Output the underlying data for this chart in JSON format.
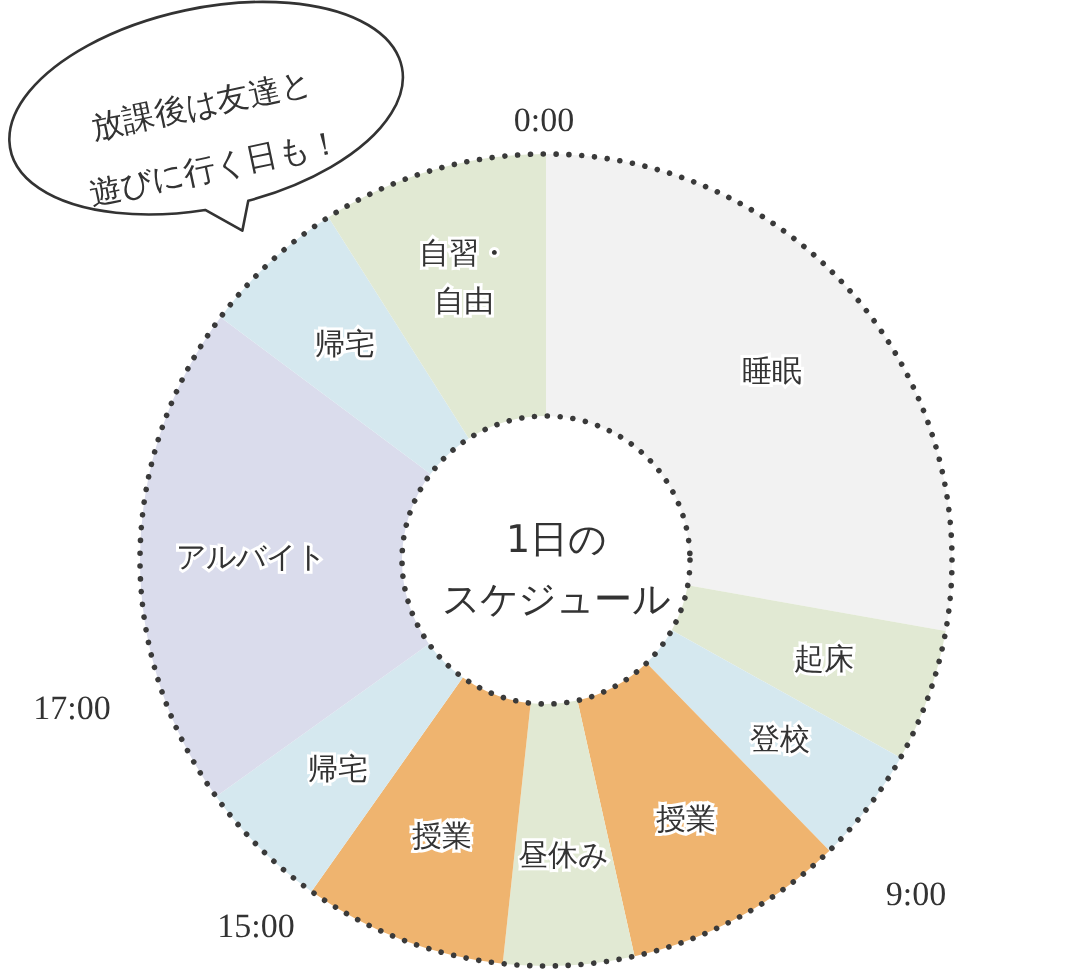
{
  "chart_data": {
    "type": "donut",
    "title": "1日のスケジュール",
    "categories": [
      "睡眠",
      "起床",
      "登校",
      "授業",
      "昼休み",
      "授業",
      "帰宅",
      "アルバイト",
      "帰宅",
      "自習・自由"
    ],
    "values": [
      27.8,
      5.3,
      4.6,
      8.8,
      5.2,
      8.1,
      5.3,
      20.1,
      5.8,
      9.0
    ],
    "colors": [
      "#f2f2f2",
      "#e1e9d3",
      "#d5e8ef",
      "#efb46f",
      "#e1e9d3",
      "#efb46f",
      "#d5e8ef",
      "#dadcec",
      "#d5e8ef",
      "#e1e9d3"
    ],
    "annotations": [
      "放課後は友達と遊びに行く日も！",
      "0:00",
      "9:00",
      "15:00",
      "17:00"
    ]
  }
}
